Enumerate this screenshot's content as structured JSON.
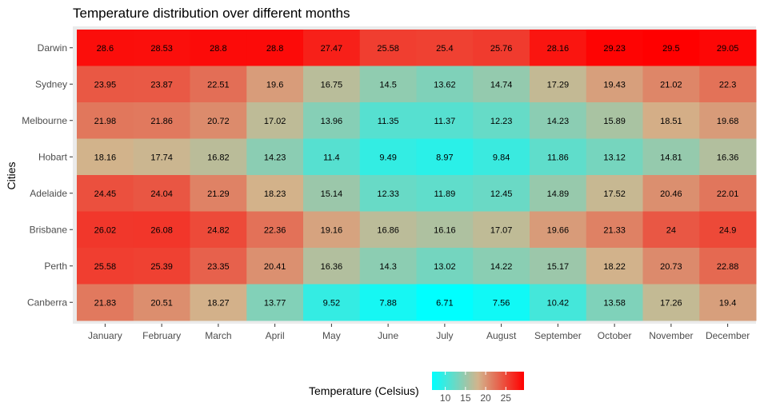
{
  "colors": {
    "low": "#00FFFF",
    "mid": "#D2B48C",
    "high": "#FF0000",
    "panel_bg": "#EBEBEB",
    "tick_mark": "#333333"
  },
  "chart_data": {
    "type": "heatmap",
    "title": "Temperature distribution over different months",
    "xlabel": "",
    "ylabel": "Cities",
    "x": [
      "January",
      "February",
      "March",
      "April",
      "May",
      "June",
      "July",
      "August",
      "September",
      "October",
      "November",
      "December"
    ],
    "y": [
      "Darwin",
      "Sydney",
      "Melbourne",
      "Hobart",
      "Adelaide",
      "Brisbane",
      "Perth",
      "Canberra"
    ],
    "values": [
      [
        28.6,
        28.53,
        28.8,
        28.8,
        27.47,
        25.58,
        25.4,
        25.76,
        28.16,
        29.23,
        29.5,
        29.05
      ],
      [
        23.95,
        23.87,
        22.51,
        19.6,
        16.75,
        14.5,
        13.62,
        14.74,
        17.29,
        19.43,
        21.02,
        22.3
      ],
      [
        21.98,
        21.86,
        20.72,
        17.02,
        13.96,
        11.35,
        11.37,
        12.23,
        14.23,
        15.89,
        18.51,
        19.68
      ],
      [
        18.16,
        17.74,
        16.82,
        14.23,
        11.4,
        9.49,
        8.97,
        9.84,
        11.86,
        13.12,
        14.81,
        16.36
      ],
      [
        24.45,
        24.04,
        21.29,
        18.23,
        15.14,
        12.33,
        11.89,
        12.45,
        14.89,
        17.52,
        20.46,
        22.01
      ],
      [
        26.02,
        26.08,
        24.82,
        22.36,
        19.16,
        16.86,
        16.16,
        17.07,
        19.66,
        21.33,
        24,
        24.9
      ],
      [
        25.58,
        25.39,
        23.35,
        20.41,
        16.36,
        14.3,
        13.02,
        14.22,
        15.17,
        18.22,
        20.73,
        22.88
      ],
      [
        21.83,
        20.51,
        18.27,
        13.77,
        9.52,
        7.88,
        6.71,
        7.56,
        10.42,
        13.58,
        17.26,
        19.4
      ]
    ],
    "labels": [
      [
        "28.6",
        "28.53",
        "28.8",
        "28.8",
        "27.47",
        "25.58",
        "25.4",
        "25.76",
        "28.16",
        "29.23",
        "29.5",
        "29.05"
      ],
      [
        "23.95",
        "23.87",
        "22.51",
        "19.6",
        "16.75",
        "14.5",
        "13.62",
        "14.74",
        "17.29",
        "19.43",
        "21.02",
        "22.3"
      ],
      [
        "21.98",
        "21.86",
        "20.72",
        "17.02",
        "13.96",
        "11.35",
        "11.37",
        "12.23",
        "14.23",
        "15.89",
        "18.51",
        "19.68"
      ],
      [
        "18.16",
        "17.74",
        "16.82",
        "14.23",
        "11.4",
        "9.49",
        "8.97",
        "9.84",
        "11.86",
        "13.12",
        "14.81",
        "16.36"
      ],
      [
        "24.45",
        "24.04",
        "21.29",
        "18.23",
        "15.14",
        "12.33",
        "11.89",
        "12.45",
        "14.89",
        "17.52",
        "20.46",
        "22.01"
      ],
      [
        "26.02",
        "26.08",
        "24.82",
        "22.36",
        "19.16",
        "16.86",
        "16.16",
        "17.07",
        "19.66",
        "21.33",
        "24",
        "24.9"
      ],
      [
        "25.58",
        "25.39",
        "23.35",
        "20.41",
        "16.36",
        "14.3",
        "13.02",
        "14.22",
        "15.17",
        "18.22",
        "20.73",
        "22.88"
      ],
      [
        "21.83",
        "20.51",
        "18.27",
        "13.77",
        "9.52",
        "7.88",
        "6.71",
        "7.56",
        "10.42",
        "13.58",
        "17.26",
        "19.4"
      ]
    ],
    "legend": {
      "title": "Temperature (Celsius)",
      "position": "bottom",
      "ticks": [
        10,
        15,
        20,
        25
      ],
      "tick_labels": [
        "10",
        "15",
        "20",
        "25"
      ]
    },
    "color_scale": {
      "low": 6.71,
      "mid": 18.1,
      "high": 29.5
    },
    "grid": false
  }
}
